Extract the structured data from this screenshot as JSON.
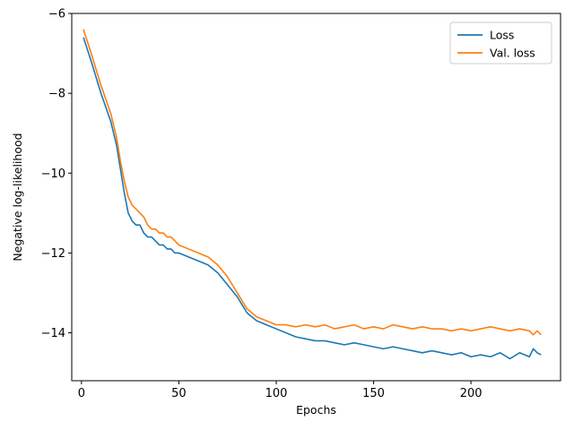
{
  "chart_data": {
    "type": "line",
    "title": "",
    "xlabel": "Epochs",
    "ylabel": "Negative log-likelihood",
    "xlim": [
      -5,
      246
    ],
    "ylim": [
      -15.2,
      -6.0
    ],
    "xticks": [
      0,
      50,
      100,
      150,
      200
    ],
    "yticks": [
      -14,
      -12,
      -10,
      -8,
      -6
    ],
    "xtick_labels": [
      "0",
      "50",
      "100",
      "150",
      "200"
    ],
    "ytick_labels": [
      "−14",
      "−12",
      "−10",
      "−8",
      "−6"
    ],
    "grid": false,
    "legend_position": "upper right",
    "series": [
      {
        "name": "Loss",
        "color": "#1f77b4",
        "x": [
          1,
          5,
          10,
          15,
          18,
          20,
          22,
          24,
          26,
          28,
          30,
          32,
          34,
          36,
          38,
          40,
          42,
          44,
          46,
          48,
          50,
          55,
          60,
          65,
          70,
          75,
          80,
          85,
          90,
          95,
          100,
          105,
          110,
          115,
          120,
          125,
          130,
          135,
          140,
          145,
          150,
          155,
          160,
          165,
          170,
          175,
          180,
          185,
          190,
          195,
          200,
          205,
          210,
          215,
          220,
          225,
          230,
          232,
          234,
          236
        ],
        "values": [
          -6.6,
          -7.2,
          -8.0,
          -8.7,
          -9.3,
          -9.9,
          -10.5,
          -11.0,
          -11.2,
          -11.3,
          -11.3,
          -11.5,
          -11.6,
          -11.6,
          -11.7,
          -11.8,
          -11.8,
          -11.9,
          -11.9,
          -12.0,
          -12.0,
          -12.1,
          -12.2,
          -12.3,
          -12.5,
          -12.8,
          -13.1,
          -13.5,
          -13.7,
          -13.8,
          -13.9,
          -14.0,
          -14.1,
          -14.15,
          -14.2,
          -14.2,
          -14.25,
          -14.3,
          -14.25,
          -14.3,
          -14.35,
          -14.4,
          -14.35,
          -14.4,
          -14.45,
          -14.5,
          -14.45,
          -14.5,
          -14.55,
          -14.5,
          -14.6,
          -14.55,
          -14.6,
          -14.5,
          -14.65,
          -14.5,
          -14.6,
          -14.4,
          -14.5,
          -14.55
        ]
      },
      {
        "name": "Val. loss",
        "color": "#ff7f0e",
        "x": [
          1,
          5,
          10,
          15,
          18,
          20,
          22,
          24,
          26,
          28,
          30,
          32,
          34,
          36,
          38,
          40,
          42,
          44,
          46,
          48,
          50,
          55,
          60,
          65,
          70,
          75,
          80,
          85,
          90,
          95,
          100,
          105,
          110,
          115,
          120,
          125,
          130,
          135,
          140,
          145,
          150,
          155,
          160,
          165,
          170,
          175,
          180,
          185,
          190,
          195,
          200,
          205,
          210,
          215,
          220,
          225,
          230,
          232,
          234,
          236
        ],
        "values": [
          -6.4,
          -7.0,
          -7.8,
          -8.5,
          -9.1,
          -9.7,
          -10.2,
          -10.6,
          -10.8,
          -10.9,
          -11.0,
          -11.1,
          -11.3,
          -11.4,
          -11.4,
          -11.5,
          -11.5,
          -11.6,
          -11.6,
          -11.7,
          -11.8,
          -11.9,
          -12.0,
          -12.1,
          -12.3,
          -12.6,
          -13.0,
          -13.4,
          -13.6,
          -13.7,
          -13.8,
          -13.8,
          -13.85,
          -13.8,
          -13.85,
          -13.8,
          -13.9,
          -13.85,
          -13.8,
          -13.9,
          -13.85,
          -13.9,
          -13.8,
          -13.85,
          -13.9,
          -13.85,
          -13.9,
          -13.9,
          -13.95,
          -13.9,
          -13.95,
          -13.9,
          -13.85,
          -13.9,
          -13.95,
          -13.9,
          -13.95,
          -14.05,
          -13.95,
          -14.05
        ]
      }
    ]
  }
}
